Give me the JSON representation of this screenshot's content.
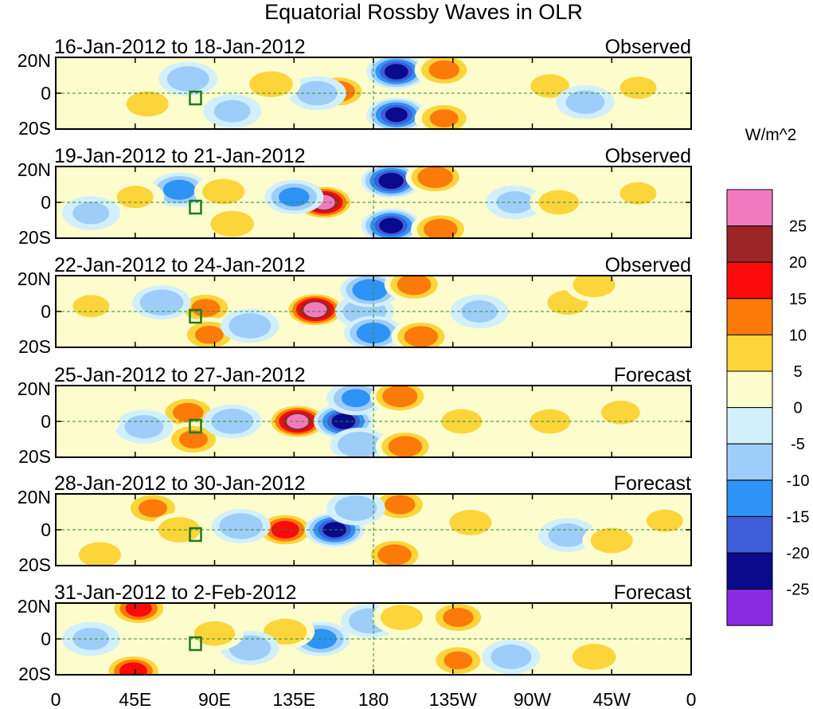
{
  "chart_data": {
    "type": "heatmap",
    "title": "Equatorial Rossby Waves in OLR",
    "units": "W/m^2",
    "x_tick_labels": [
      "0",
      "45E",
      "90E",
      "135E",
      "180",
      "135W",
      "90W",
      "45W",
      "0"
    ],
    "x_ticks_deg": [
      0,
      45,
      90,
      135,
      180,
      225,
      270,
      315,
      360
    ],
    "y_tick_labels": [
      "20N",
      "0",
      "20S"
    ],
    "y_ticks_deg": [
      20,
      0,
      -20
    ],
    "xlim": [
      0,
      360
    ],
    "ylim": [
      -20,
      20
    ],
    "colorbar": {
      "tick_labels": [
        "25",
        "20",
        "15",
        "10",
        "5",
        "0",
        "-5",
        "-10",
        "-15",
        "-20",
        "-25"
      ],
      "colors": [
        "#f27bbf",
        "#9c2526",
        "#fa0a0a",
        "#fc7a0a",
        "#fcd53a",
        "#fdfccc",
        "#d2f0fc",
        "#9ecdf9",
        "#2e93f7",
        "#3d5ed8",
        "#0a0a8c",
        "#8a2be2"
      ]
    },
    "panels": [
      {
        "date_range": "16-Jan-2012 to 18-Jan-2012",
        "kind": "Observed",
        "blobs": [
          {
            "lon": 193,
            "lat": 12,
            "value": -22
          },
          {
            "lon": 193,
            "lat": -12,
            "value": -21
          },
          {
            "lon": 220,
            "lat": 13,
            "value": 12
          },
          {
            "lon": 220,
            "lat": -14,
            "value": 11
          },
          {
            "lon": 160,
            "lat": 1,
            "value": 14
          },
          {
            "lon": 148,
            "lat": 0,
            "value": -8
          },
          {
            "lon": 122,
            "lat": 5,
            "value": 10
          },
          {
            "lon": 52,
            "lat": -6,
            "value": 9
          },
          {
            "lon": 75,
            "lat": 8,
            "value": -9
          },
          {
            "lon": 280,
            "lat": 4,
            "value": 7
          },
          {
            "lon": 300,
            "lat": -5,
            "value": -7
          },
          {
            "lon": 330,
            "lat": 3,
            "value": 6
          },
          {
            "lon": 20,
            "lat": -3,
            "value": 5
          },
          {
            "lon": 100,
            "lat": -10,
            "value": -6
          }
        ]
      },
      {
        "date_range": "19-Jan-2012 to 21-Jan-2012",
        "kind": "Observed",
        "blobs": [
          {
            "lon": 152,
            "lat": 0,
            "value": 27
          },
          {
            "lon": 135,
            "lat": 3,
            "value": -12
          },
          {
            "lon": 190,
            "lat": 12,
            "value": -23
          },
          {
            "lon": 190,
            "lat": -13,
            "value": -22
          },
          {
            "lon": 215,
            "lat": 14,
            "value": 15
          },
          {
            "lon": 218,
            "lat": -15,
            "value": 14
          },
          {
            "lon": 70,
            "lat": 7,
            "value": -13
          },
          {
            "lon": 95,
            "lat": 6,
            "value": 9
          },
          {
            "lon": 100,
            "lat": -12,
            "value": 10
          },
          {
            "lon": 45,
            "lat": 3,
            "value": 6
          },
          {
            "lon": 260,
            "lat": 0,
            "value": -6
          },
          {
            "lon": 285,
            "lat": 0,
            "value": 8
          },
          {
            "lon": 330,
            "lat": 5,
            "value": 6
          },
          {
            "lon": 20,
            "lat": -6,
            "value": -6
          }
        ]
      },
      {
        "date_range": "22-Jan-2012 to 24-Jan-2012",
        "kind": "Observed",
        "blobs": [
          {
            "lon": 147,
            "lat": 1,
            "value": 28
          },
          {
            "lon": 175,
            "lat": 0,
            "value": -10
          },
          {
            "lon": 178,
            "lat": 12,
            "value": -15
          },
          {
            "lon": 180,
            "lat": -12,
            "value": -14
          },
          {
            "lon": 203,
            "lat": 15,
            "value": 14
          },
          {
            "lon": 207,
            "lat": -14,
            "value": 14
          },
          {
            "lon": 85,
            "lat": 2,
            "value": 11
          },
          {
            "lon": 87,
            "lat": -13,
            "value": 11
          },
          {
            "lon": 60,
            "lat": 5,
            "value": -10
          },
          {
            "lon": 110,
            "lat": -8,
            "value": -9
          },
          {
            "lon": 290,
            "lat": 5,
            "value": 8
          },
          {
            "lon": 305,
            "lat": 15,
            "value": 9
          },
          {
            "lon": 20,
            "lat": 3,
            "value": 6
          },
          {
            "lon": 240,
            "lat": 0,
            "value": -6
          }
        ]
      },
      {
        "date_range": "25-Jan-2012 to 27-Jan-2012",
        "kind": "Forecast",
        "blobs": [
          {
            "lon": 137,
            "lat": 0,
            "value": 27
          },
          {
            "lon": 163,
            "lat": 0,
            "value": -22
          },
          {
            "lon": 170,
            "lat": 13,
            "value": -11
          },
          {
            "lon": 172,
            "lat": -13,
            "value": -10
          },
          {
            "lon": 195,
            "lat": 14,
            "value": 15
          },
          {
            "lon": 198,
            "lat": -14,
            "value": 14
          },
          {
            "lon": 75,
            "lat": 5,
            "value": 12
          },
          {
            "lon": 78,
            "lat": -10,
            "value": 11
          },
          {
            "lon": 100,
            "lat": 0,
            "value": -9
          },
          {
            "lon": 50,
            "lat": -3,
            "value": -7
          },
          {
            "lon": 230,
            "lat": 0,
            "value": 8
          },
          {
            "lon": 280,
            "lat": 0,
            "value": 8
          },
          {
            "lon": 320,
            "lat": 5,
            "value": 7
          },
          {
            "lon": 20,
            "lat": 0,
            "value": 5
          }
        ]
      },
      {
        "date_range": "28-Jan-2012 to 30-Jan-2012",
        "kind": "Forecast",
        "blobs": [
          {
            "lon": 130,
            "lat": 0,
            "value": 18
          },
          {
            "lon": 158,
            "lat": 0,
            "value": -22
          },
          {
            "lon": 195,
            "lat": 14,
            "value": 12
          },
          {
            "lon": 192,
            "lat": -14,
            "value": 14
          },
          {
            "lon": 55,
            "lat": 12,
            "value": 11
          },
          {
            "lon": 25,
            "lat": -14,
            "value": 9
          },
          {
            "lon": 70,
            "lat": 0,
            "value": 9
          },
          {
            "lon": 105,
            "lat": 2,
            "value": -10
          },
          {
            "lon": 170,
            "lat": 12,
            "value": -9
          },
          {
            "lon": 235,
            "lat": 4,
            "value": 9
          },
          {
            "lon": 290,
            "lat": -3,
            "value": -7
          },
          {
            "lon": 315,
            "lat": -6,
            "value": 9
          },
          {
            "lon": 345,
            "lat": 5,
            "value": 6
          }
        ]
      },
      {
        "date_range": "31-Jan-2012 to 2-Feb-2012",
        "kind": "Forecast",
        "blobs": [
          {
            "lon": 47,
            "lat": 17,
            "value": 17
          },
          {
            "lon": 44,
            "lat": -18,
            "value": 18
          },
          {
            "lon": 150,
            "lat": 0,
            "value": -13
          },
          {
            "lon": 130,
            "lat": 4,
            "value": 10
          },
          {
            "lon": 110,
            "lat": -5,
            "value": -9
          },
          {
            "lon": 90,
            "lat": 3,
            "value": 8
          },
          {
            "lon": 178,
            "lat": 10,
            "value": -9
          },
          {
            "lon": 196,
            "lat": 12,
            "value": 9
          },
          {
            "lon": 228,
            "lat": 12,
            "value": 12
          },
          {
            "lon": 228,
            "lat": -12,
            "value": 11
          },
          {
            "lon": 258,
            "lat": -10,
            "value": -8
          },
          {
            "lon": 305,
            "lat": -10,
            "value": 10
          },
          {
            "lon": 20,
            "lat": 0,
            "value": -6
          }
        ]
      }
    ]
  }
}
